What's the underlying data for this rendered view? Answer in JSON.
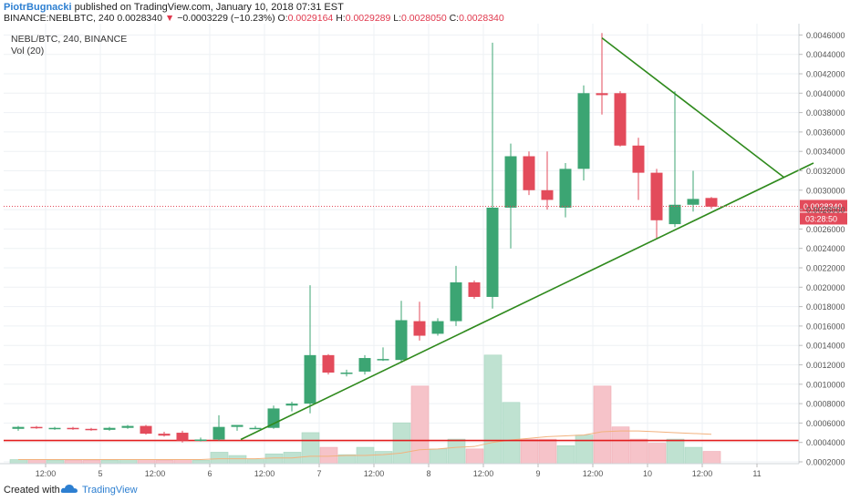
{
  "header": {
    "author": "PiotrBugnacki",
    "published": " published on TradingView.com, January 10, 2018 07:31 EST",
    "symbol_line": "BINANCE:NEBLBTC, 240",
    "last": "0.0028340",
    "change": "−0.0003229 (−10.23%)",
    "o_label": "O:",
    "o_value": "0.0029164",
    "h_label": "H:",
    "h_value": "0.0029289",
    "l_label": "L:",
    "l_value": "0.0028050",
    "c_label": "C:",
    "c_value": "0.0028340"
  },
  "legend": {
    "symbol": "NEBL/BTC, 240, BINANCE",
    "volume": "Vol (20)"
  },
  "footer": {
    "created_with": "Created with",
    "brand": "TradingView"
  },
  "chart_data": {
    "type": "candlestick",
    "symbol": "NEBL/BTC",
    "interval": "240",
    "exchange": "BINANCE",
    "ylim": [
      0.0002,
      0.00466
    ],
    "y_ticks": [
      "0.0046000",
      "0.0044000",
      "0.0042000",
      "0.0040000",
      "0.0038000",
      "0.0036000",
      "0.0034000",
      "0.0032000",
      "0.0030000",
      "0.0028000",
      "0.0026000",
      "0.0024000",
      "0.0022000",
      "0.0020000",
      "0.0018000",
      "0.0016000",
      "0.0014000",
      "0.0012000",
      "0.0010000",
      "0.0008000",
      "0.0006000",
      "0.0004000",
      "0.0002000"
    ],
    "x_ticks": [
      {
        "label": "12:00",
        "i": 1.5
      },
      {
        "label": "5",
        "i": 4.5
      },
      {
        "label": "12:00",
        "i": 7.5
      },
      {
        "label": "6",
        "i": 10.5
      },
      {
        "label": "12:00",
        "i": 13.5
      },
      {
        "label": "7",
        "i": 16.5
      },
      {
        "label": "12:00",
        "i": 19.5
      },
      {
        "label": "8",
        "i": 22.5
      },
      {
        "label": "12:00",
        "i": 25.5
      },
      {
        "label": "9",
        "i": 28.5
      },
      {
        "label": "12:00",
        "i": 31.5
      },
      {
        "label": "10",
        "i": 34.5
      },
      {
        "label": "12:00",
        "i": 37.5
      },
      {
        "label": "11",
        "i": 40.5
      }
    ],
    "candles": [
      {
        "o": 0.00054,
        "h": 0.00057,
        "l": 0.00052,
        "c": 0.00056
      },
      {
        "o": 0.00056,
        "h": 0.00057,
        "l": 0.00054,
        "c": 0.00055
      },
      {
        "o": 0.00055,
        "h": 0.00056,
        "l": 0.00053,
        "c": 0.00055
      },
      {
        "o": 0.00055,
        "h": 0.00056,
        "l": 0.00053,
        "c": 0.00054
      },
      {
        "o": 0.00054,
        "h": 0.00055,
        "l": 0.00052,
        "c": 0.00053
      },
      {
        "o": 0.00053,
        "h": 0.00056,
        "l": 0.00052,
        "c": 0.00055
      },
      {
        "o": 0.00055,
        "h": 0.00058,
        "l": 0.00054,
        "c": 0.00057
      },
      {
        "o": 0.00057,
        "h": 0.00058,
        "l": 0.00048,
        "c": 0.00049
      },
      {
        "o": 0.00049,
        "h": 0.00051,
        "l": 0.00046,
        "c": 0.00047
      },
      {
        "o": 0.0005,
        "h": 0.00052,
        "l": 0.0004,
        "c": 0.00042
      },
      {
        "o": 0.00043,
        "h": 0.00045,
        "l": 0.00041,
        "c": 0.00043
      },
      {
        "o": 0.00043,
        "h": 0.00068,
        "l": 0.00042,
        "c": 0.00056
      },
      {
        "o": 0.00056,
        "h": 0.00058,
        "l": 0.00052,
        "c": 0.00058
      },
      {
        "o": 0.00055,
        "h": 0.00057,
        "l": 0.00054,
        "c": 0.00055
      },
      {
        "o": 0.00055,
        "h": 0.00078,
        "l": 0.00054,
        "c": 0.00075
      },
      {
        "o": 0.00078,
        "h": 0.00082,
        "l": 0.00072,
        "c": 0.0008
      },
      {
        "o": 0.0008,
        "h": 0.00202,
        "l": 0.0007,
        "c": 0.0013
      },
      {
        "o": 0.0013,
        "h": 0.00131,
        "l": 0.0011,
        "c": 0.00112
      },
      {
        "o": 0.00112,
        "h": 0.00115,
        "l": 0.00108,
        "c": 0.00112
      },
      {
        "o": 0.00113,
        "h": 0.0013,
        "l": 0.0011,
        "c": 0.00127
      },
      {
        "o": 0.00125,
        "h": 0.00138,
        "l": 0.00124,
        "c": 0.00126
      },
      {
        "o": 0.00125,
        "h": 0.00186,
        "l": 0.00122,
        "c": 0.00166
      },
      {
        "o": 0.00165,
        "h": 0.00185,
        "l": 0.00145,
        "c": 0.0015
      },
      {
        "o": 0.00152,
        "h": 0.00168,
        "l": 0.0015,
        "c": 0.00165
      },
      {
        "o": 0.00165,
        "h": 0.00222,
        "l": 0.0016,
        "c": 0.00205
      },
      {
        "o": 0.00205,
        "h": 0.00207,
        "l": 0.00188,
        "c": 0.0019
      },
      {
        "o": 0.0019,
        "h": 0.00452,
        "l": 0.00178,
        "c": 0.00282
      },
      {
        "o": 0.00282,
        "h": 0.00348,
        "l": 0.0024,
        "c": 0.00335
      },
      {
        "o": 0.00335,
        "h": 0.0034,
        "l": 0.00295,
        "c": 0.003
      },
      {
        "o": 0.003,
        "h": 0.0034,
        "l": 0.0028,
        "c": 0.0029
      },
      {
        "o": 0.00282,
        "h": 0.00328,
        "l": 0.00272,
        "c": 0.00322
      },
      {
        "o": 0.00322,
        "h": 0.00408,
        "l": 0.0031,
        "c": 0.004
      },
      {
        "o": 0.004,
        "h": 0.00462,
        "l": 0.00378,
        "c": 0.00398
      },
      {
        "o": 0.004,
        "h": 0.00402,
        "l": 0.00345,
        "c": 0.00346
      },
      {
        "o": 0.00346,
        "h": 0.00354,
        "l": 0.0029,
        "c": 0.00318
      },
      {
        "o": 0.00318,
        "h": 0.00322,
        "l": 0.0025,
        "c": 0.00269
      },
      {
        "o": 0.00265,
        "h": 0.00402,
        "l": 0.00262,
        "c": 0.00285
      },
      {
        "o": 0.00285,
        "h": 0.0032,
        "l": 0.00278,
        "c": 0.00291
      },
      {
        "o": 0.00292,
        "h": 0.00293,
        "l": 0.00281,
        "c": 0.00283
      }
    ],
    "volume_ylim": [
      0,
      0.00135
    ],
    "volume": [
      5e-05,
      5e-05,
      4e-05,
      4e-05,
      4e-05,
      4e-05,
      5e-05,
      5e-05,
      4e-05,
      5e-05,
      4e-05,
      0.00014,
      0.0001,
      5e-05,
      0.00012,
      0.00014,
      0.00038,
      0.0002,
      0.00011,
      0.0002,
      0.00015,
      0.0005,
      0.00095,
      0.00018,
      0.0003,
      0.00018,
      0.00133,
      0.00075,
      0.0003,
      0.0003,
      0.00022,
      0.00035,
      0.00095,
      0.00045,
      0.0003,
      0.00025,
      0.0003,
      0.0002,
      0.00015
    ],
    "volume_ma": [
      5e-05,
      5e-05,
      5e-05,
      5e-05,
      5e-05,
      5e-05,
      5e-05,
      5e-05,
      5e-05,
      5e-05,
      5e-05,
      6e-05,
      6e-05,
      6e-05,
      7e-05,
      7e-05,
      9e-05,
      9e-05,
      0.0001,
      0.0001,
      0.00011,
      0.00013,
      0.00017,
      0.00018,
      0.0002,
      0.00021,
      0.00026,
      0.00029,
      0.00031,
      0.00033,
      0.00034,
      0.00035,
      0.00039,
      0.0004,
      0.0004,
      0.00039,
      0.00038,
      0.00037,
      0.00036
    ],
    "last_price": 0.002834,
    "last_price_label": "0.0028340",
    "countdown": "03:28:50",
    "horizontal_line": 0.00042,
    "trendlines": [
      {
        "from": {
          "i": 12.2,
          "price": 0.00043
        },
        "to": {
          "i": 43.6,
          "price": 0.00328
        }
      },
      {
        "from": {
          "i": 32.0,
          "price": 0.00457
        },
        "to": {
          "i": 42.0,
          "price": 0.00313
        }
      }
    ],
    "colors": {
      "up": "#3ca573",
      "down": "#e34b5b",
      "vol_up": "#bfe2d1",
      "vol_down": "#f6c3c9",
      "horizontal_line": "#e21d1d",
      "trendline": "#2f8a1d",
      "volume_ma": "#f2b27e",
      "grid": "#eef1f4"
    }
  }
}
